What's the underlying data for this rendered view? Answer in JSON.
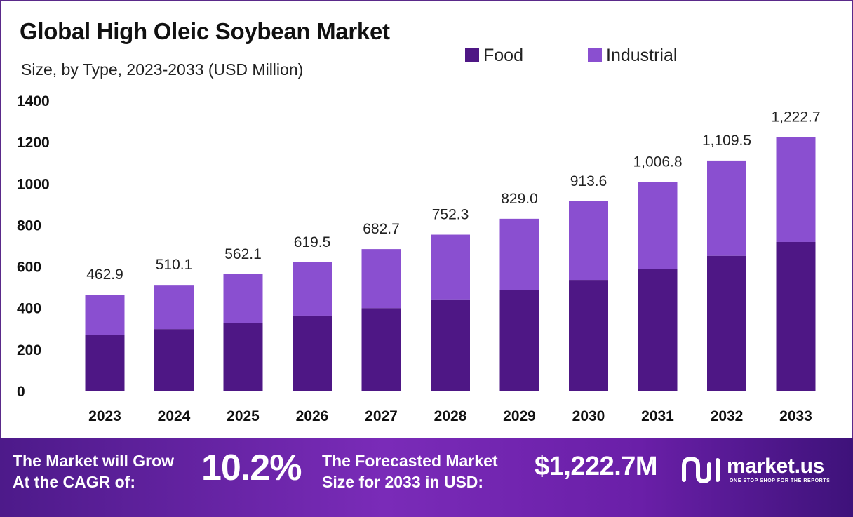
{
  "colors": {
    "food": "#4e1785",
    "industrial": "#8a4fd0",
    "axis_text": "#111111",
    "label_text": "#222222"
  },
  "header": {
    "title": "Global High Oleic Soybean Market",
    "subtitle": "Size, by Type, 2023-2033 (USD Million)"
  },
  "legend": {
    "food": "Food",
    "industrial": "Industrial"
  },
  "chart_data": {
    "type": "bar",
    "stacked": true,
    "categories": [
      "2023",
      "2024",
      "2025",
      "2026",
      "2027",
      "2028",
      "2029",
      "2030",
      "2031",
      "2032",
      "2033"
    ],
    "series": [
      {
        "name": "Food",
        "values": [
          270,
          297,
          328,
          362,
          398,
          440,
          484,
          534,
          588,
          650,
          717
        ]
      },
      {
        "name": "Industrial",
        "values": [
          192.9,
          213.1,
          234.1,
          257.5,
          284.7,
          312.3,
          345.0,
          379.6,
          418.8,
          459.5,
          505.7
        ]
      }
    ],
    "totals": [
      462.9,
      510.1,
      562.1,
      619.5,
      682.7,
      752.3,
      829.0,
      913.6,
      1006.8,
      1109.5,
      1222.7
    ],
    "total_labels": [
      "462.9",
      "510.1",
      "562.1",
      "619.5",
      "682.7",
      "752.3",
      "829.0",
      "913.6",
      "1,006.8",
      "1,109.5",
      "1,222.7"
    ],
    "ylim": [
      0,
      1400
    ],
    "yticks": [
      0,
      200,
      400,
      600,
      800,
      1000,
      1200,
      1400
    ],
    "grid": false,
    "legend_position": "top-right"
  },
  "banner": {
    "cagr_line1": "The Market will Grow",
    "cagr_line2": "At the CAGR of:",
    "cagr_value": "10.2%",
    "forecast_line1": "The Forecasted Market",
    "forecast_line2": "Size for 2033 in USD:",
    "forecast_value": "$1,222.7M",
    "brand": "market.us",
    "tagline": "ONE STOP SHOP FOR THE REPORTS"
  }
}
